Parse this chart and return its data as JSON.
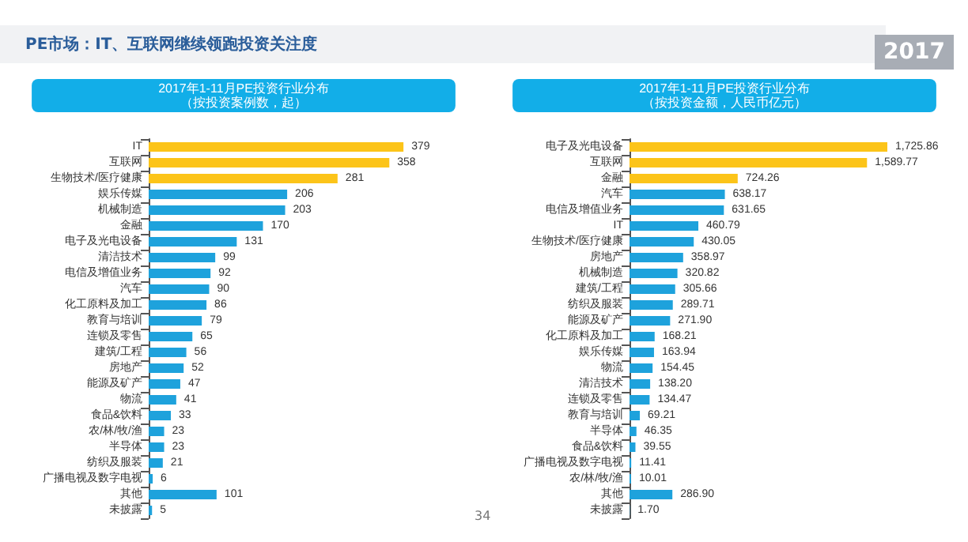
{
  "chart_data": [
    {
      "type": "bar",
      "orientation": "horizontal",
      "title": "2017年1-11月PE投资行业分布",
      "subtitle": "（按投资案例数，起）",
      "annotations": [
        "PE市场：IT、互联网继续领跑投资关注度"
      ],
      "data_labels": true,
      "categories": [
        "IT",
        "互联网",
        "生物技术/医疗健康",
        "娱乐传媒",
        "机械制造",
        "金融",
        "电子及光电设备",
        "清洁技术",
        "电信及增值业务",
        "汽车",
        "化工原料及加工",
        "教育与培训",
        "连锁及零售",
        "建筑/工程",
        "房地产",
        "能源及矿产",
        "物流",
        "食品&饮料",
        "农/林/牧/渔",
        "半导体",
        "纺织及服装",
        "广播电视及数字电视",
        "其他",
        "未披露"
      ],
      "values": [
        379,
        358,
        281,
        206,
        203,
        170,
        131,
        99,
        92,
        90,
        86,
        79,
        65,
        56,
        52,
        47,
        41,
        33,
        23,
        23,
        21,
        6,
        101,
        5
      ],
      "colors": [
        "#fcc419",
        "#fcc419",
        "#fcc419",
        "#1ea2dc",
        "#1ea2dc",
        "#1ea2dc",
        "#1ea2dc",
        "#1ea2dc",
        "#1ea2dc",
        "#1ea2dc",
        "#1ea2dc",
        "#1ea2dc",
        "#1ea2dc",
        "#1ea2dc",
        "#1ea2dc",
        "#1ea2dc",
        "#1ea2dc",
        "#1ea2dc",
        "#1ea2dc",
        "#1ea2dc",
        "#1ea2dc",
        "#1ea2dc",
        "#1ea2dc",
        "#1ea2dc"
      ]
    },
    {
      "type": "bar",
      "orientation": "horizontal",
      "title": "2017年1-11月PE投资行业分布",
      "subtitle": "（按投资金额，人民币亿元）",
      "annotations": [
        "2017",
        "34"
      ],
      "categories": [
        "电子及光电设备",
        "互联网",
        "金融",
        "汽车",
        "电信及增值业务",
        "IT",
        "生物技术/医疗健康",
        "房地产",
        "机械制造",
        "建筑/工程",
        "纺织及服装",
        "能源及矿产",
        "化工原料及加工",
        "娱乐传媒",
        "物流",
        "清洁技术",
        "连锁及零售",
        "教育与培训",
        "半导体",
        "食品&饮料",
        "广播电视及数字电视",
        "农/林/牧/渔",
        "其他",
        "未披露"
      ],
      "values": [
        1725.86,
        1589.77,
        724.26,
        638.17,
        631.65,
        460.79,
        430.05,
        358.97,
        320.82,
        305.66,
        289.71,
        271.9,
        168.21,
        163.94,
        154.45,
        138.2,
        134.47,
        69.21,
        46.35,
        39.55,
        11.41,
        10.01,
        286.9,
        1.7
      ],
      "value_labels": [
        "1,725.86",
        "1,589.77",
        "724.26",
        "638.17",
        "631.65",
        "460.79",
        "430.05",
        "358.97",
        "320.82",
        "305.66",
        "289.71",
        "271.90",
        "168.21",
        "163.94",
        "154.45",
        "138.20",
        "134.47",
        "69.21",
        "46.35",
        "39.55",
        "11.41",
        "10.01",
        "286.90",
        "1.70"
      ],
      "colors": [
        "#fcc419",
        "#fcc419",
        "#fcc419",
        "#1ea2dc",
        "#1ea2dc",
        "#1ea2dc",
        "#1ea2dc",
        "#1ea2dc",
        "#1ea2dc",
        "#1ea2dc",
        "#1ea2dc",
        "#1ea2dc",
        "#1ea2dc",
        "#1ea2dc",
        "#1ea2dc",
        "#1ea2dc",
        "#1ea2dc",
        "#1ea2dc",
        "#1ea2dc",
        "#1ea2dc",
        "#1ea2dc",
        "#1ea2dc",
        "#1ea2dc",
        "#1ea2dc"
      ]
    }
  ]
}
